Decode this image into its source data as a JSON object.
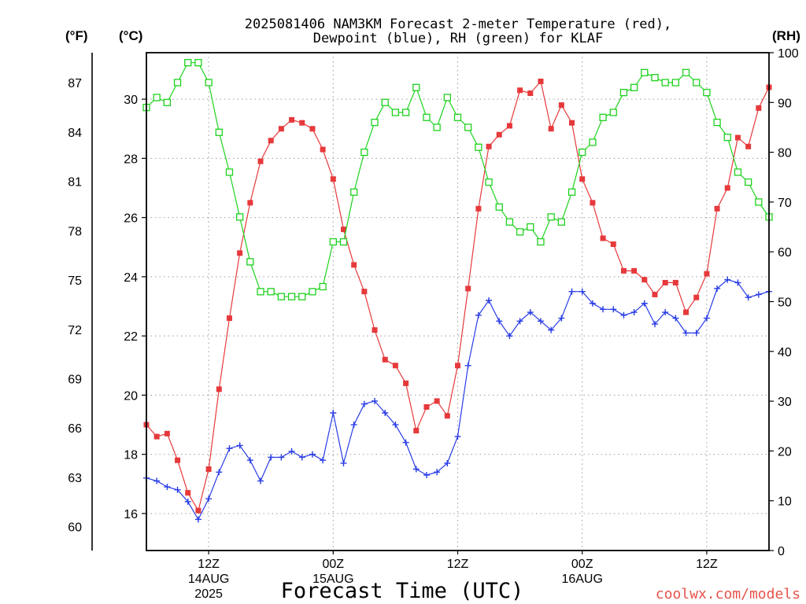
{
  "chart_data": {
    "type": "line",
    "title": [
      "2025081406 NAM3KM Forecast 2-meter Temperature (red),",
      "Dewpoint (blue), RH (green) for KLAF"
    ],
    "xlabel": "Forecast Time (UTC)",
    "y_left_outer_label": "(°F)",
    "y_left_label": "(°C)",
    "y_right_label": "(RH)",
    "source_credit": "coolwx.com/models",
    "source_credit_color": "#e5534b",
    "grid": true,
    "xlim": [
      "2025-08-14T06:00Z",
      "2025-08-16T18:00Z"
    ],
    "ylim_c": [
      14.75,
      31.57
    ],
    "ylim_rh": [
      0,
      100
    ],
    "x_ticks": [
      {
        "at": "2025-08-14T12:00Z",
        "labels": [
          "12Z",
          "14AUG",
          "2025"
        ]
      },
      {
        "at": "2025-08-15T00:00Z",
        "labels": [
          "00Z",
          "15AUG"
        ]
      },
      {
        "at": "2025-08-15T12:00Z",
        "labels": [
          "12Z"
        ]
      },
      {
        "at": "2025-08-16T00:00Z",
        "labels": [
          "00Z",
          "16AUG"
        ]
      },
      {
        "at": "2025-08-16T12:00Z",
        "labels": [
          "12Z"
        ]
      }
    ],
    "yticks_f": [
      60,
      63,
      66,
      69,
      72,
      75,
      78,
      81,
      84,
      87
    ],
    "yticks_c": [
      16,
      18,
      20,
      22,
      24,
      26,
      28,
      30
    ],
    "yticks_rh": [
      0,
      10,
      20,
      30,
      40,
      50,
      60,
      70,
      80,
      90,
      100
    ],
    "x": [
      "2025-08-14T06:00Z",
      "2025-08-14T07:00Z",
      "2025-08-14T08:00Z",
      "2025-08-14T09:00Z",
      "2025-08-14T10:00Z",
      "2025-08-14T11:00Z",
      "2025-08-14T12:00Z",
      "2025-08-14T13:00Z",
      "2025-08-14T14:00Z",
      "2025-08-14T15:00Z",
      "2025-08-14T16:00Z",
      "2025-08-14T17:00Z",
      "2025-08-14T18:00Z",
      "2025-08-14T19:00Z",
      "2025-08-14T20:00Z",
      "2025-08-14T21:00Z",
      "2025-08-14T22:00Z",
      "2025-08-14T23:00Z",
      "2025-08-15T00:00Z",
      "2025-08-15T01:00Z",
      "2025-08-15T02:00Z",
      "2025-08-15T03:00Z",
      "2025-08-15T04:00Z",
      "2025-08-15T05:00Z",
      "2025-08-15T06:00Z",
      "2025-08-15T07:00Z",
      "2025-08-15T08:00Z",
      "2025-08-15T09:00Z",
      "2025-08-15T10:00Z",
      "2025-08-15T11:00Z",
      "2025-08-15T12:00Z",
      "2025-08-15T13:00Z",
      "2025-08-15T14:00Z",
      "2025-08-15T15:00Z",
      "2025-08-15T16:00Z",
      "2025-08-15T17:00Z",
      "2025-08-15T18:00Z",
      "2025-08-15T19:00Z",
      "2025-08-15T20:00Z",
      "2025-08-15T21:00Z",
      "2025-08-15T22:00Z",
      "2025-08-15T23:00Z",
      "2025-08-16T00:00Z",
      "2025-08-16T01:00Z",
      "2025-08-16T02:00Z",
      "2025-08-16T03:00Z",
      "2025-08-16T04:00Z",
      "2025-08-16T05:00Z",
      "2025-08-16T06:00Z",
      "2025-08-16T07:00Z",
      "2025-08-16T08:00Z",
      "2025-08-16T09:00Z",
      "2025-08-16T10:00Z",
      "2025-08-16T11:00Z",
      "2025-08-16T12:00Z",
      "2025-08-16T13:00Z",
      "2025-08-16T14:00Z",
      "2025-08-16T15:00Z",
      "2025-08-16T16:00Z",
      "2025-08-16T17:00Z",
      "2025-08-16T18:00Z"
    ],
    "series": [
      {
        "y_axis": "left",
        "color": "#e6393b",
        "marker": "filled-square",
        "values": [
          19.0,
          18.6,
          18.7,
          17.8,
          16.7,
          16.1,
          17.5,
          20.2,
          22.6,
          24.8,
          26.5,
          27.9,
          28.6,
          29.0,
          29.3,
          29.2,
          29.0,
          28.3,
          27.3,
          25.6,
          24.4,
          23.5,
          22.2,
          21.2,
          21.0,
          20.4,
          18.8,
          19.6,
          19.8,
          19.3,
          21.0,
          23.6,
          26.3,
          28.4,
          28.8,
          29.1,
          30.3,
          30.2,
          30.6,
          29.0,
          29.8,
          29.2,
          27.3,
          26.5,
          25.3,
          25.1,
          24.2,
          24.2,
          23.9,
          23.4,
          23.8,
          23.8,
          22.8,
          23.3,
          24.1,
          26.3,
          27.0,
          28.7,
          28.4,
          29.7,
          30.4
        ]
      },
      {
        "y_axis": "left",
        "color": "#283ce6",
        "marker": "plus",
        "values": [
          17.2,
          17.1,
          16.9,
          16.8,
          16.4,
          15.8,
          16.5,
          17.4,
          18.2,
          18.3,
          17.8,
          17.1,
          17.9,
          17.9,
          18.1,
          17.9,
          18.0,
          17.8,
          19.4,
          17.7,
          19.0,
          19.7,
          19.8,
          19.4,
          19.0,
          18.4,
          17.5,
          17.3,
          17.4,
          17.7,
          18.6,
          21.0,
          22.7,
          23.2,
          22.5,
          22.0,
          22.5,
          22.8,
          22.5,
          22.2,
          22.6,
          23.5,
          23.5,
          23.1,
          22.9,
          22.9,
          22.7,
          22.8,
          23.1,
          22.4,
          22.8,
          22.6,
          22.1,
          22.1,
          22.6,
          23.6,
          23.9,
          23.8,
          23.3,
          23.4,
          23.5
        ]
      },
      {
        "y_axis": "right",
        "color": "#1ed21e",
        "marker": "open-square",
        "values": [
          89,
          91,
          90,
          94,
          98,
          98,
          94,
          84,
          76,
          67,
          58,
          52,
          52,
          51,
          51,
          51,
          52,
          53,
          62,
          62,
          72,
          80,
          86,
          90,
          88,
          88,
          93,
          87,
          85,
          91,
          87,
          85,
          81,
          74,
          69,
          66,
          64,
          65,
          62,
          67,
          66,
          72,
          80,
          82,
          87,
          88,
          92,
          93,
          96,
          95,
          94,
          94,
          96,
          94,
          92,
          86,
          83,
          76,
          74,
          70,
          67
        ]
      }
    ]
  }
}
